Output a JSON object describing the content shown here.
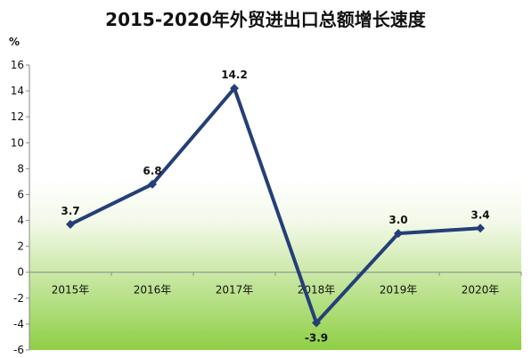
{
  "chart_data": {
    "type": "line",
    "title": "2015-2020年外贸进出口总额增长速度",
    "ylabel": "%",
    "xlabel": "",
    "categories": [
      "2015年",
      "2016年",
      "2017年",
      "2018年",
      "2019年",
      "2020年"
    ],
    "series": [
      {
        "values": [
          3.7,
          6.8,
          14.2,
          -3.9,
          3.0,
          3.4
        ]
      }
    ],
    "data_labels": [
      "3.7",
      "6.8",
      "14.2",
      "-3.9",
      "3.0",
      "3.4"
    ],
    "ylim": [
      -6,
      16
    ],
    "yticks": [
      -6,
      -4,
      -2,
      0,
      2,
      4,
      6,
      8,
      10,
      12,
      14,
      16
    ],
    "ytick_labels": [
      "-6",
      "-4",
      "-2",
      "0",
      "2",
      "4",
      "6",
      "8",
      "10",
      "12",
      "14",
      "16"
    ],
    "grid": false,
    "legend": "none",
    "colors": {
      "line": "#243f78",
      "marker": "#243f78",
      "axis": "#8a8a8a",
      "plot_bg_top": "#ffffff",
      "plot_bg_bottom": "#8fcf45"
    }
  }
}
